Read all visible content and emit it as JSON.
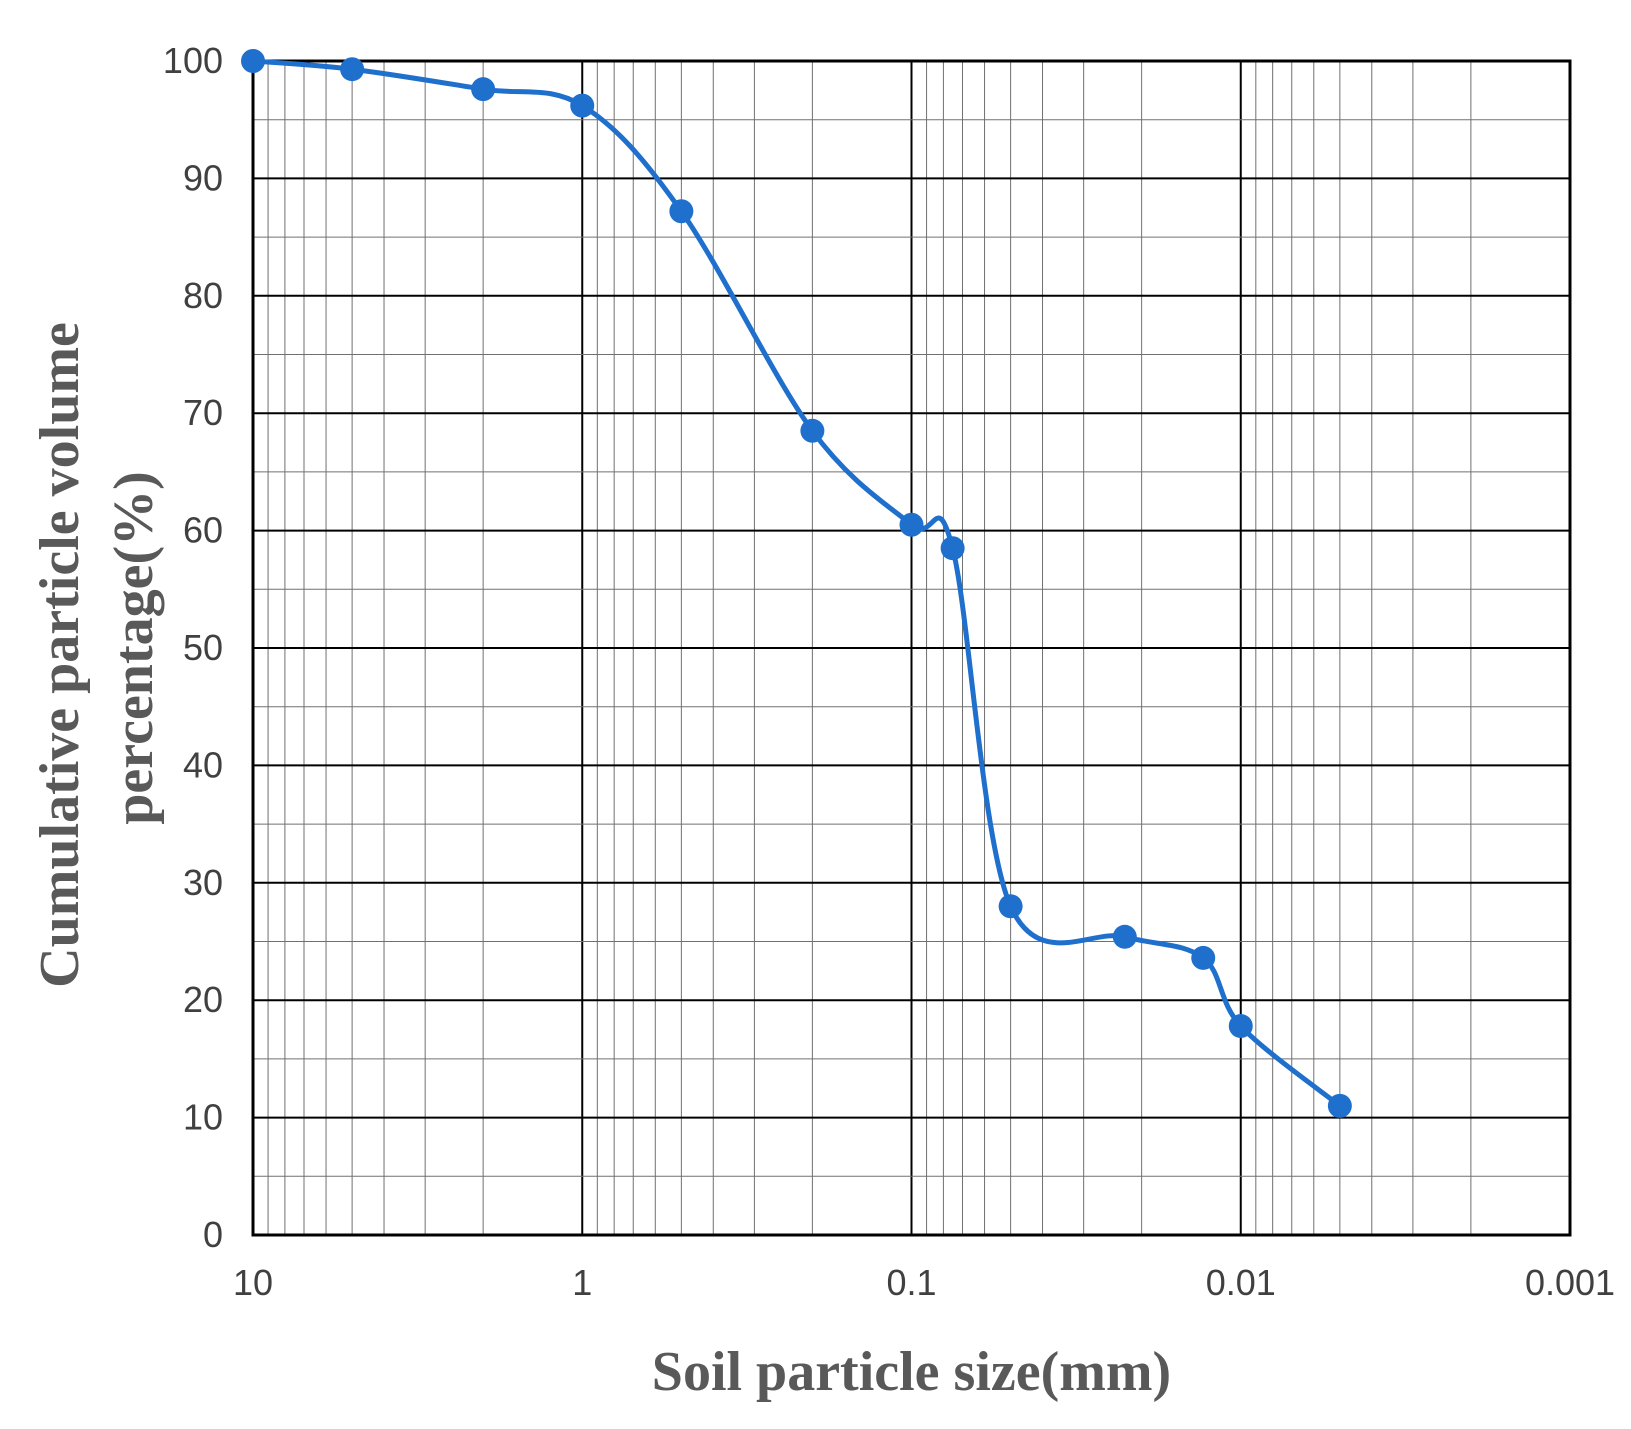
{
  "chart_data": {
    "type": "line",
    "title": "",
    "xlabel": "Soil particle size(mm)",
    "ylabel_lines": [
      "Cumulative particle volume",
      "percentage(%)"
    ],
    "x_scale": "log",
    "x_reversed": true,
    "xlim": [
      10,
      0.001
    ],
    "ylim": [
      0,
      100
    ],
    "x_ticks": [
      {
        "value": 10,
        "label": "10"
      },
      {
        "value": 1,
        "label": "1"
      },
      {
        "value": 0.1,
        "label": "0.1"
      },
      {
        "value": 0.01,
        "label": "0.01"
      },
      {
        "value": 0.001,
        "label": "0.001"
      }
    ],
    "y_ticks": [
      {
        "value": 0,
        "label": "0"
      },
      {
        "value": 10,
        "label": "10"
      },
      {
        "value": 20,
        "label": "20"
      },
      {
        "value": 30,
        "label": "30"
      },
      {
        "value": 40,
        "label": "40"
      },
      {
        "value": 50,
        "label": "50"
      },
      {
        "value": 60,
        "label": "60"
      },
      {
        "value": 70,
        "label": "70"
      },
      {
        "value": 80,
        "label": "80"
      },
      {
        "value": 90,
        "label": "90"
      },
      {
        "value": 100,
        "label": "100"
      }
    ],
    "grid": true,
    "legend": "none",
    "series": [
      {
        "color": "#1f6fcc",
        "marker": "circle",
        "smooth": true,
        "points": [
          {
            "x": 10,
            "y": 100
          },
          {
            "x": 5,
            "y": 99.3
          },
          {
            "x": 2,
            "y": 97.6
          },
          {
            "x": 1,
            "y": 96.2
          },
          {
            "x": 0.5,
            "y": 87.2
          },
          {
            "x": 0.2,
            "y": 68.5
          },
          {
            "x": 0.1,
            "y": 60.5
          },
          {
            "x": 0.075,
            "y": 58.5
          },
          {
            "x": 0.05,
            "y": 28
          },
          {
            "x": 0.0225,
            "y": 25.4
          },
          {
            "x": 0.013,
            "y": 23.6
          },
          {
            "x": 0.01,
            "y": 17.8
          },
          {
            "x": 0.005,
            "y": 11
          }
        ]
      }
    ]
  }
}
